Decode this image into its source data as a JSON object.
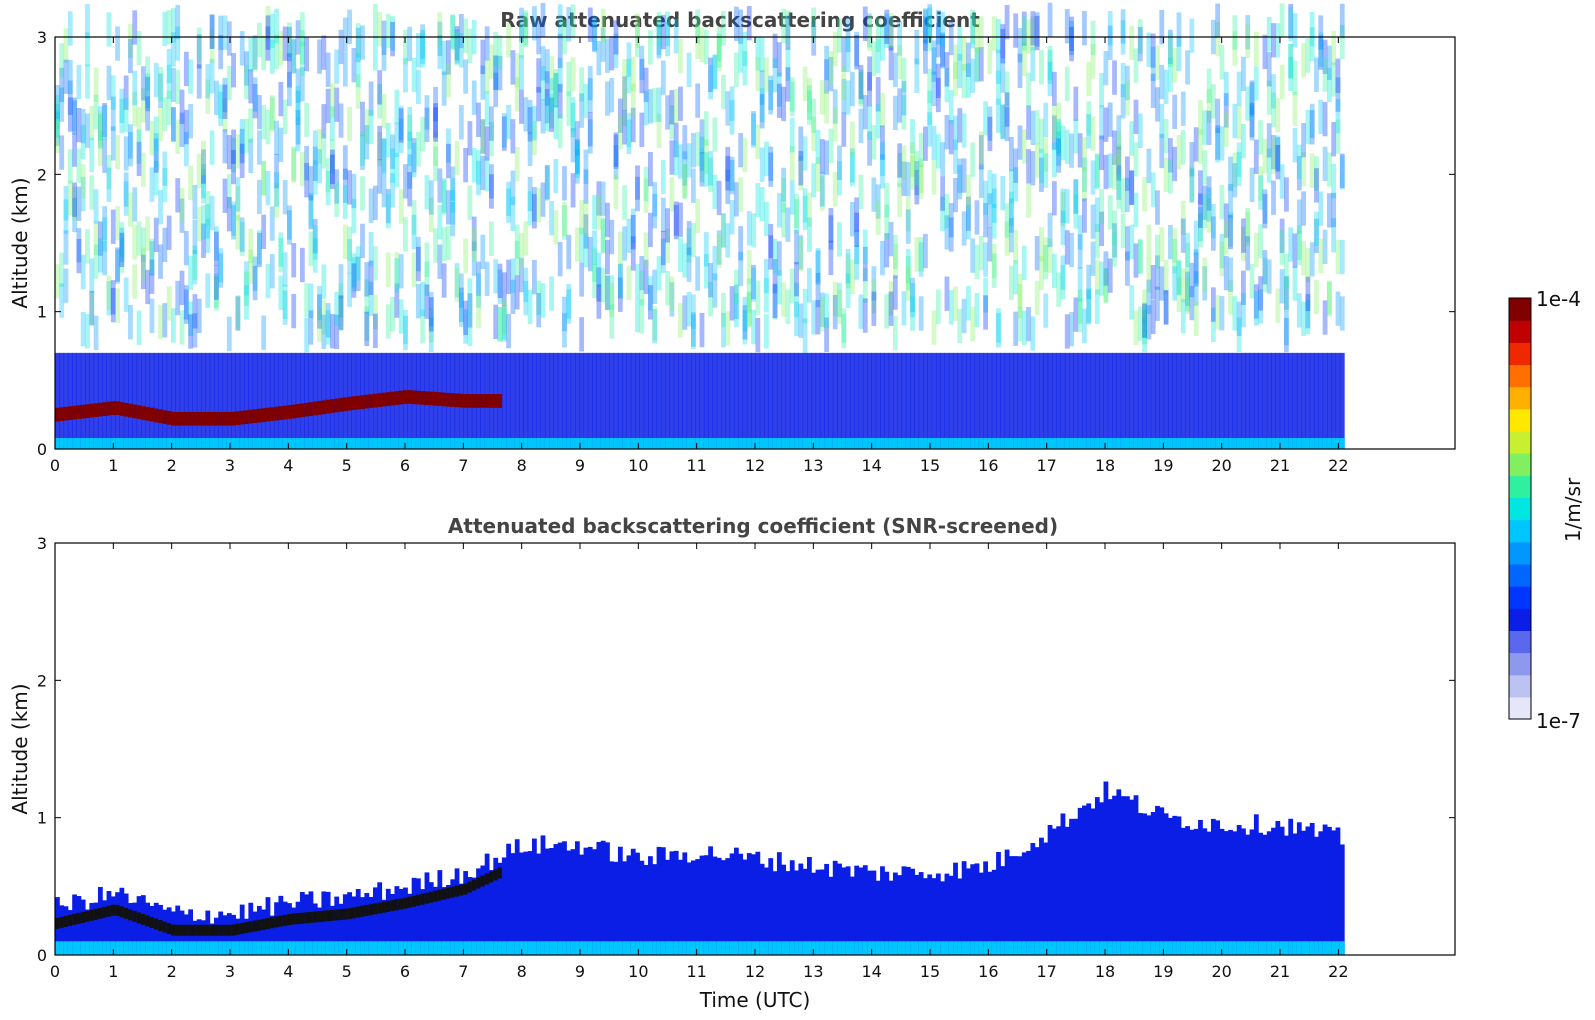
{
  "chart_data": [
    {
      "type": "heatmap",
      "title": "Raw attenuated backscattering coefficient",
      "xlabel": "",
      "ylabel": "Altitude (km)",
      "xlim": [
        0,
        24
      ],
      "ylim": [
        0,
        3
      ],
      "xticks": [
        "0",
        "1",
        "2",
        "3",
        "4",
        "5",
        "6",
        "7",
        "8",
        "9",
        "10",
        "11",
        "12",
        "13",
        "14",
        "15",
        "16",
        "17",
        "18",
        "19",
        "20",
        "21",
        "22"
      ],
      "yticks": [
        "0",
        "1",
        "2",
        "3"
      ],
      "data_time_range": [
        0,
        22.1
      ],
      "color_scale": "log",
      "grid": false,
      "boundary_layer_top_km": [
        {
          "x": 0,
          "y": 0.25
        },
        {
          "x": 1,
          "y": 0.3
        },
        {
          "x": 2,
          "y": 0.22
        },
        {
          "x": 3,
          "y": 0.22
        },
        {
          "x": 4,
          "y": 0.27
        },
        {
          "x": 5,
          "y": 0.33
        },
        {
          "x": 6,
          "y": 0.38
        },
        {
          "x": 7,
          "y": 0.35
        }
      ]
    },
    {
      "type": "heatmap",
      "title": "Attenuated backscattering coefficient (SNR-screened)",
      "xlabel": "Time (UTC)",
      "ylabel": "Altitude (km)",
      "xlim": [
        0,
        24
      ],
      "ylim": [
        0,
        3
      ],
      "xticks": [
        "0",
        "1",
        "2",
        "3",
        "4",
        "5",
        "6",
        "7",
        "8",
        "9",
        "10",
        "11",
        "12",
        "13",
        "14",
        "15",
        "16",
        "17",
        "18",
        "19",
        "20",
        "21",
        "22"
      ],
      "yticks": [
        "0",
        "1",
        "2",
        "3"
      ],
      "data_time_range": [
        0,
        22.1
      ],
      "color_scale": "log",
      "grid": false,
      "signal_top_km": [
        {
          "x": 0,
          "y": 0.35
        },
        {
          "x": 1,
          "y": 0.45
        },
        {
          "x": 2,
          "y": 0.3
        },
        {
          "x": 3,
          "y": 0.3
        },
        {
          "x": 4,
          "y": 0.38
        },
        {
          "x": 5,
          "y": 0.42
        },
        {
          "x": 6,
          "y": 0.5
        },
        {
          "x": 7,
          "y": 0.6
        },
        {
          "x": 8,
          "y": 0.8
        },
        {
          "x": 9,
          "y": 0.8
        },
        {
          "x": 10,
          "y": 0.7
        },
        {
          "x": 11,
          "y": 0.75
        },
        {
          "x": 12,
          "y": 0.7
        },
        {
          "x": 13,
          "y": 0.65
        },
        {
          "x": 14,
          "y": 0.6
        },
        {
          "x": 15,
          "y": 0.6
        },
        {
          "x": 16,
          "y": 0.65
        },
        {
          "x": 17,
          "y": 0.9
        },
        {
          "x": 18,
          "y": 1.2
        },
        {
          "x": 19,
          "y": 1.0
        },
        {
          "x": 20,
          "y": 0.95
        },
        {
          "x": 21,
          "y": 0.95
        },
        {
          "x": 22,
          "y": 0.85
        }
      ]
    }
  ],
  "colorbar": {
    "label": "1/m/sr",
    "max_label": "1e-4",
    "min_label": "1e-7",
    "scale": "log",
    "colors": [
      "#e6e6fa",
      "#bcc2f2",
      "#8e98ec",
      "#5a68ee",
      "#0a1ee6",
      "#0034ff",
      "#0066ff",
      "#0098ff",
      "#00c6ff",
      "#00e6e0",
      "#30f0a0",
      "#80f060",
      "#c8f030",
      "#ffe800",
      "#ffb000",
      "#ff7000",
      "#f02800",
      "#c00000",
      "#800000"
    ]
  }
}
